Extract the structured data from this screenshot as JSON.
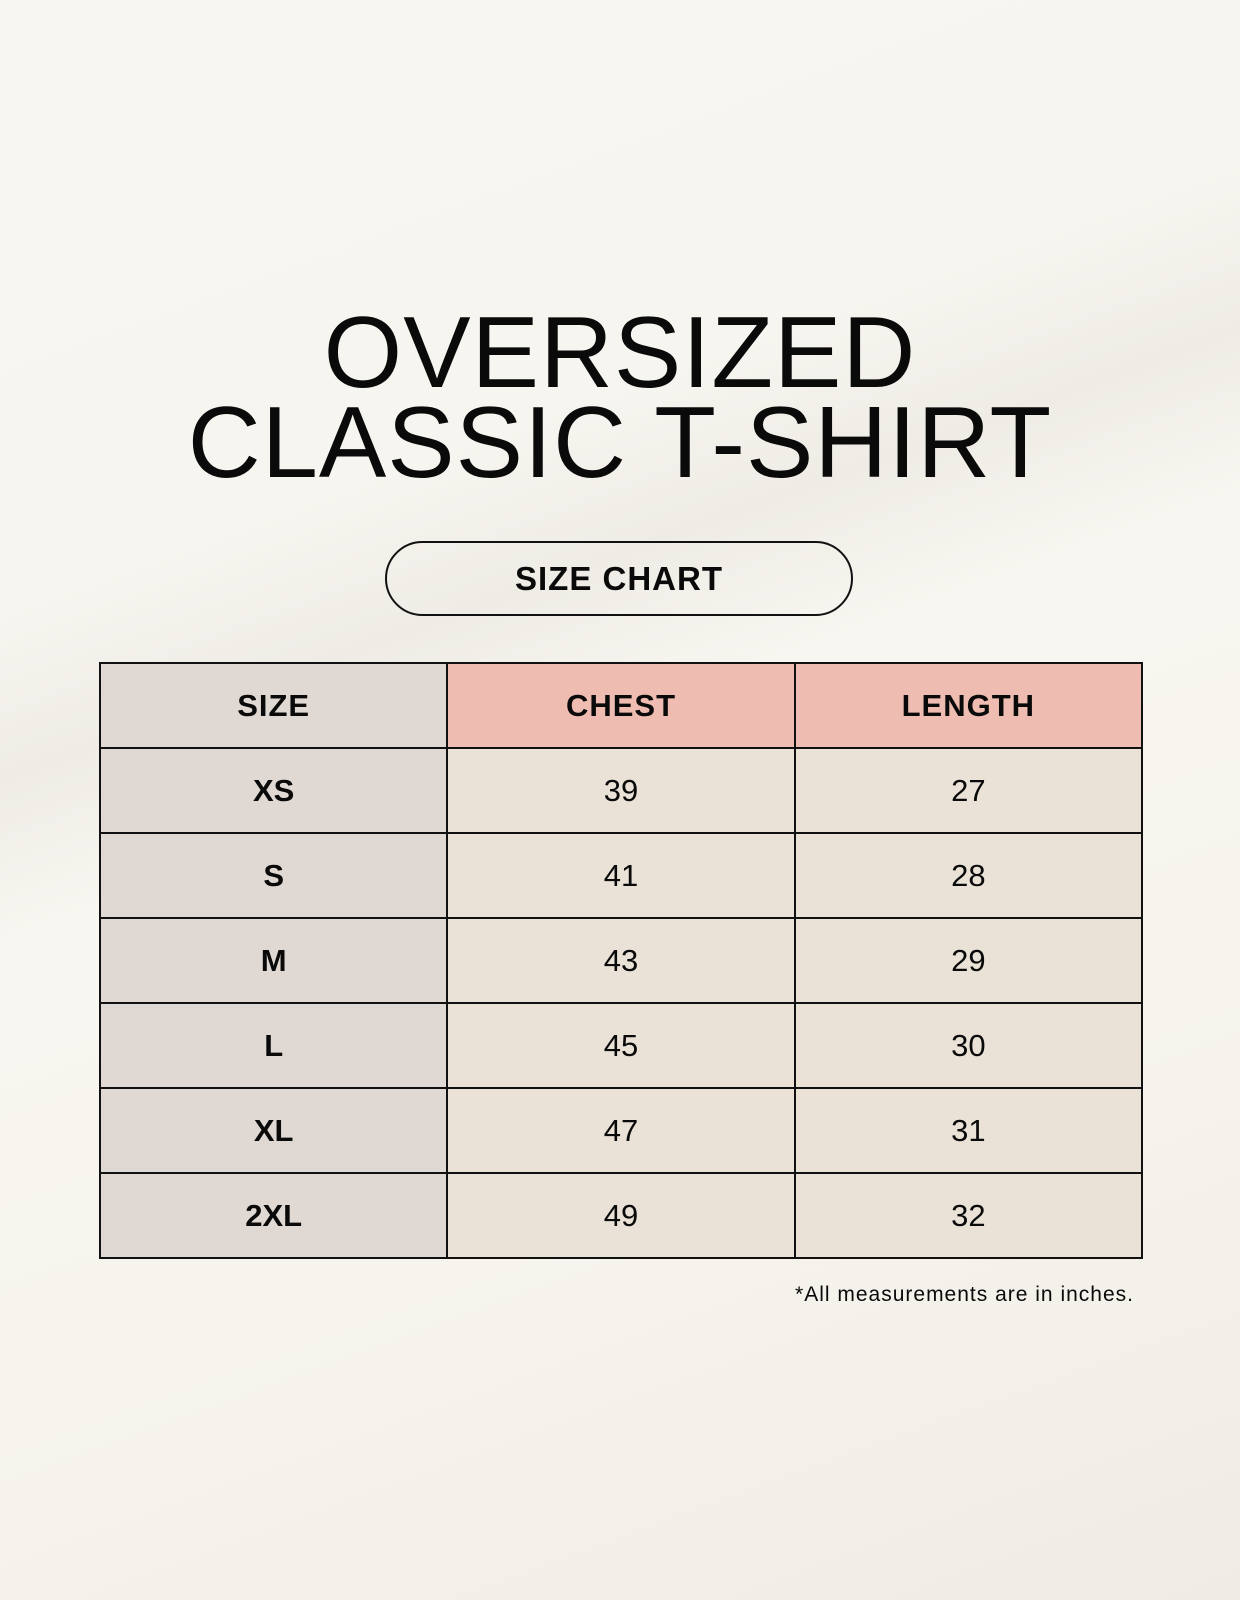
{
  "title": {
    "line1": "OVERSIZED",
    "line2": "CLASSIC T-SHIRT"
  },
  "badge": "SIZE CHART",
  "table": {
    "headers": [
      "SIZE",
      "CHEST",
      "LENGTH"
    ],
    "rows": [
      [
        "XS",
        "39",
        "27"
      ],
      [
        "S",
        "41",
        "28"
      ],
      [
        "M",
        "43",
        "29"
      ],
      [
        "L",
        "45",
        "30"
      ],
      [
        "XL",
        "47",
        "31"
      ],
      [
        "2XL",
        "49",
        "32"
      ]
    ]
  },
  "footnote": "*All measurements are in inches.",
  "colors": {
    "size_column": "#e0d9d3",
    "header_accent": "#eebcb0",
    "value_cells": "#eae2d7"
  }
}
